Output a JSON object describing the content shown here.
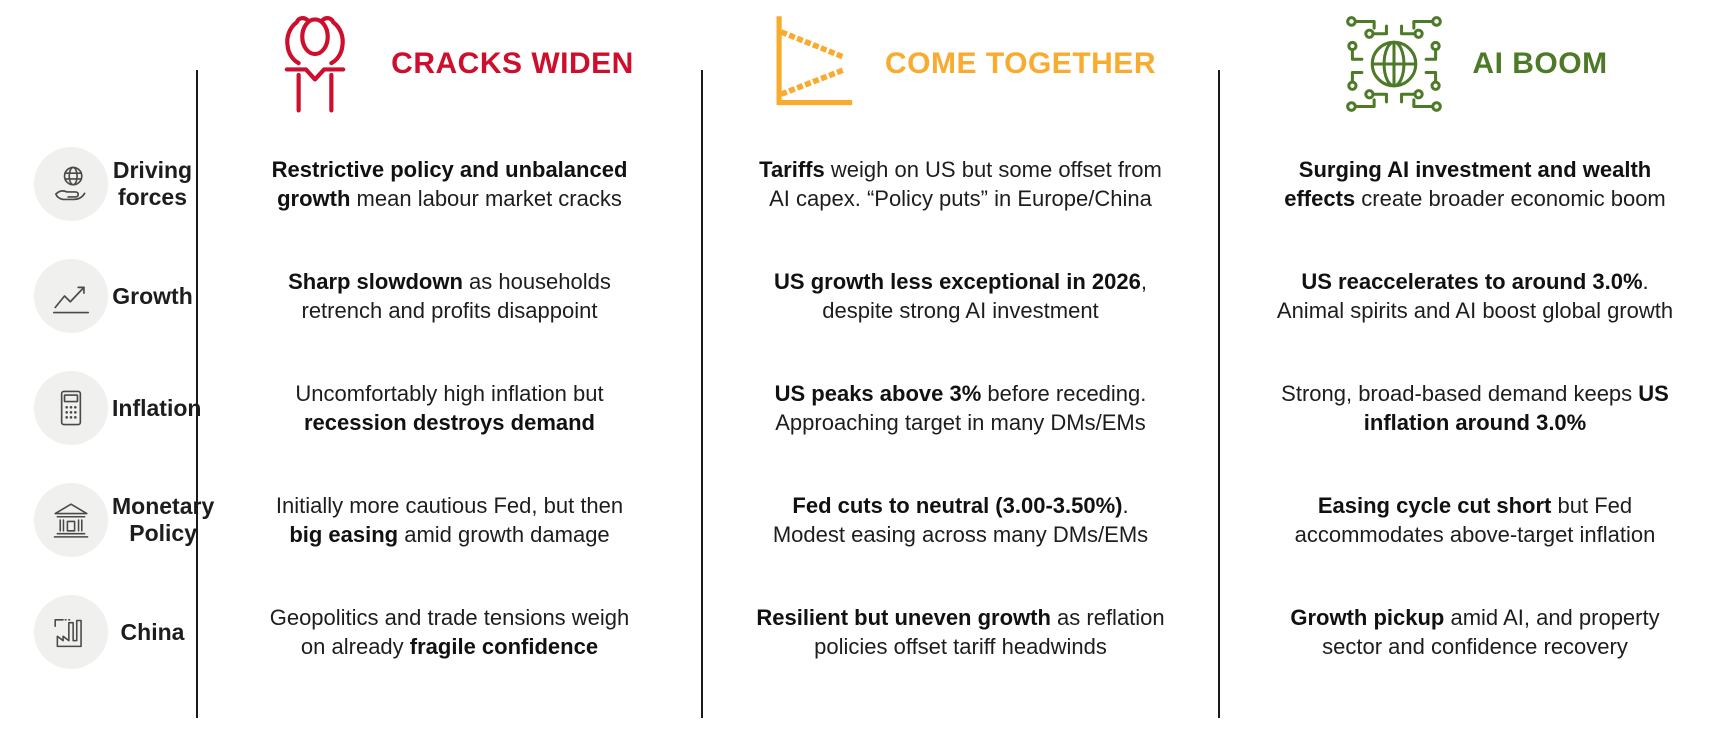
{
  "scenarios": [
    {
      "title": "CRACKS WIDEN",
      "color": "#CE0E2D",
      "icon": "head-in-hands-icon"
    },
    {
      "title": "COME TOGETHER",
      "color": "#F8AB2E",
      "icon": "converging-lines-icon"
    },
    {
      "title": "AI BOOM",
      "color": "#4C7A27",
      "icon": "globe-circuit-icon"
    }
  ],
  "rows": [
    {
      "label": "Driving forces",
      "icon": "hand-globe-icon",
      "cells": [
        {
          "segments": [
            {
              "text": "Restrictive policy and unbalanced\ngrowth",
              "bold": true
            },
            {
              "text": " mean labour market cracks"
            }
          ]
        },
        {
          "segments": [
            {
              "text": "Tariffs",
              "bold": true
            },
            {
              "text": " weigh on US but some offset from\nAI capex. “Policy puts” in Europe/China"
            }
          ]
        },
        {
          "segments": [
            {
              "text": "Surging AI investment and wealth\neffects",
              "bold": true
            },
            {
              "text": " create broader economic boom"
            }
          ]
        }
      ]
    },
    {
      "label": "Growth",
      "icon": "line-chart-icon",
      "cells": [
        {
          "segments": [
            {
              "text": "Sharp slowdown",
              "bold": true
            },
            {
              "text": " as households\nretrench and profits disappoint"
            }
          ]
        },
        {
          "segments": [
            {
              "text": "US growth less exceptional in 2026",
              "bold": true
            },
            {
              "text": ",\ndespite strong AI investment"
            }
          ]
        },
        {
          "segments": [
            {
              "text": "US reaccelerates to around 3.0%",
              "bold": true
            },
            {
              "text": ".\nAnimal spirits and AI boost global growth"
            }
          ]
        }
      ]
    },
    {
      "label": "Inflation",
      "icon": "calculator-icon",
      "cells": [
        {
          "segments": [
            {
              "text": "Uncomfortably high inflation but\n"
            },
            {
              "text": "recession destroys demand",
              "bold": true
            }
          ]
        },
        {
          "segments": [
            {
              "text": "US peaks above 3%",
              "bold": true
            },
            {
              "text": " before receding.\nApproaching target in many DMs/EMs"
            }
          ]
        },
        {
          "segments": [
            {
              "text": "Strong, broad-based demand keeps "
            },
            {
              "text": "US\ninflation around 3.0%",
              "bold": true
            }
          ]
        }
      ]
    },
    {
      "label": "Monetary Policy",
      "icon": "bank-icon",
      "cells": [
        {
          "segments": [
            {
              "text": "Initially more cautious Fed, but then\n"
            },
            {
              "text": "big easing",
              "bold": true
            },
            {
              "text": " amid growth damage"
            }
          ]
        },
        {
          "segments": [
            {
              "text": "Fed cuts to neutral (3.00-3.50%)",
              "bold": true
            },
            {
              "text": ".\nModest easing across many DMs/EMs"
            }
          ]
        },
        {
          "segments": [
            {
              "text": "Easing cycle cut short",
              "bold": true
            },
            {
              "text": " but Fed\naccommodates above-target inflation"
            }
          ]
        }
      ]
    },
    {
      "label": "China",
      "icon": "factory-icon",
      "cells": [
        {
          "segments": [
            {
              "text": "Geopolitics and trade tensions weigh\non already "
            },
            {
              "text": "fragile confidence",
              "bold": true
            }
          ]
        },
        {
          "segments": [
            {
              "text": "Resilient but uneven growth",
              "bold": true
            },
            {
              "text": " as reflation\npolicies offset tariff headwinds"
            }
          ]
        },
        {
          "segments": [
            {
              "text": "Growth pickup",
              "bold": true
            },
            {
              "text": " amid AI, and property\nsector and confidence recovery"
            }
          ]
        }
      ]
    }
  ]
}
